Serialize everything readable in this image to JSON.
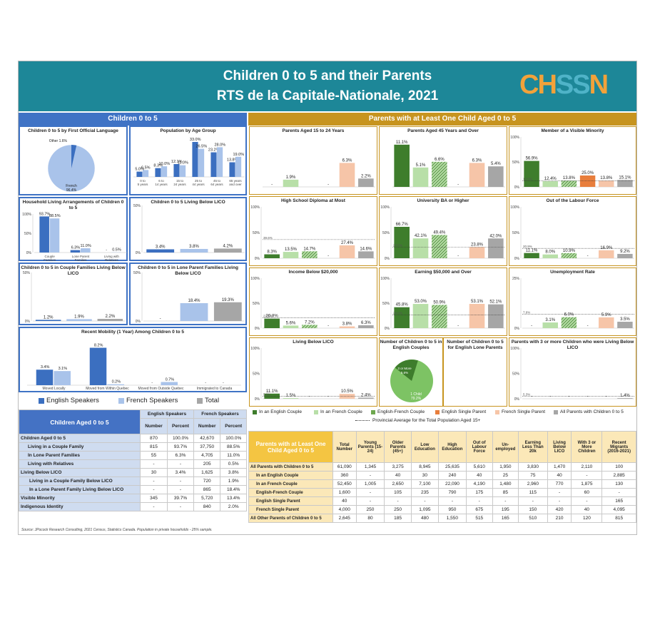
{
  "header": {
    "title": "Children 0 to 5 and their Parents",
    "subtitle": "RTS de la Capitale-Nationale, 2021",
    "logo": "CHSSN"
  },
  "left_title": "Children 0 to 5",
  "right_title": "Parents with at Least One Child Aged 0 to 5",
  "colors": {
    "teal": "#1d8798",
    "blue": "#3f73c5",
    "gold": "#c7941f",
    "eng": "#3b6fc0",
    "fr": "#a9c3ea",
    "total": "#a6a6a6",
    "ecouple": "#3e7d2c",
    "fcouple": "#b8dfa8",
    "efcouple": "#6ea84f",
    "esingle": "#e87e3c",
    "fsingle": "#f6c5a8",
    "all": "#a6a6a6"
  },
  "chart_data": [
    {
      "id": "pie1",
      "type": "pie",
      "title": "Children 0 to 5 by First Official Language",
      "labels": [
        "French",
        "English",
        "Other"
      ],
      "values": [
        96.4,
        1.9,
        1.6
      ],
      "display": [
        "French\n96.4%",
        "",
        "Other 1.6%"
      ]
    },
    {
      "id": "age",
      "type": "bar",
      "title": "Population by Age Group",
      "categories": [
        "0 to 5 years",
        "6 to 14 years",
        "15 to 24 years",
        "25 to 44 years",
        "45 to 64 years",
        "65 years and over"
      ],
      "series": [
        {
          "name": "English Speakers",
          "values": [
            5.0,
            8.3,
            12.1,
            33.0,
            23.2,
            13.8
          ]
        },
        {
          "name": "French Speakers",
          "values": [
            6.5,
            10.0,
            11.0,
            26.5,
            28.0,
            19.0
          ]
        }
      ],
      "ymax": 35
    },
    {
      "id": "hh",
      "type": "bar",
      "title": "Household Living Arrangements of Children 0 to 5",
      "categories": [
        "Couple Families",
        "Lone Parent Families",
        "Living with Relatives"
      ],
      "series": [
        {
          "name": "English Speakers",
          "values": [
            93.7,
            6.3,
            null
          ]
        },
        {
          "name": "French Speakers",
          "values": [
            88.5,
            11.0,
            0.5
          ]
        }
      ],
      "labels": [
        [
          "93.7%",
          "6.3%",
          "-"
        ],
        [
          "88.5%",
          "11.0%",
          "0.5%"
        ]
      ],
      "ymax": 100,
      "yticks": [
        "100%",
        "50%",
        "0%"
      ]
    },
    {
      "id": "licoA",
      "type": "bar",
      "title": "Children 0 to 5 Living Below LICO",
      "values": [
        3.4,
        3.8,
        4.2
      ],
      "labels": [
        "3.4%",
        "3.8%",
        "4.2%"
      ],
      "ymax": 50,
      "yticks": [
        "50%",
        "0%"
      ]
    },
    {
      "id": "licoC",
      "type": "bar",
      "title": "Children 0 to 5 in Couple Families Living Below LICO",
      "values": [
        1.2,
        1.9,
        2.2
      ],
      "labels": [
        "1.2%",
        "1.9%",
        "2.2%"
      ],
      "ymax": 50,
      "yticks": [
        "50%",
        "0%"
      ]
    },
    {
      "id": "licoL",
      "type": "bar",
      "title": "Children 0 to 5 in Lone Parent Families Living Below LICO",
      "values": [
        null,
        18.4,
        19.3
      ],
      "labels": [
        "-",
        "18.4%",
        "19.3%"
      ],
      "ymax": 50,
      "yticks": [
        "50%",
        "0%"
      ]
    },
    {
      "id": "mob",
      "type": "bar",
      "title": "Recent Mobility (1 Year) Among Children 0 to 5",
      "categories": [
        "Moved Locally",
        "Moved from Within Quebec",
        "Moved from Outside Quebec",
        "Immigrated to Canada"
      ],
      "series": [
        {
          "name": "English Speakers",
          "values": [
            3.4,
            8.2,
            null,
            null
          ]
        },
        {
          "name": "French Speakers",
          "values": [
            3.1,
            0.2,
            0.7,
            null
          ]
        }
      ],
      "labels": [
        [
          "3.4%",
          "8.2%",
          "-",
          "-"
        ],
        [
          "3.1%",
          "0.2%",
          "0.7%",
          "-"
        ]
      ],
      "ymax": 10
    },
    {
      "id": "p1",
      "type": "bar",
      "title": "Parents Aged 15 to 24 Years",
      "values": [
        null,
        1.9,
        null,
        null,
        6.3,
        2.2
      ],
      "labels": [
        "-",
        "1.9%",
        "",
        "-",
        "6.3%",
        "2.2%"
      ],
      "ymax": 12
    },
    {
      "id": "p2",
      "type": "bar",
      "title": "Parents Aged 45 Years and Over",
      "values": [
        11.1,
        5.1,
        6.6,
        null,
        6.3,
        5.4
      ],
      "labels": [
        "11.1%",
        "5.1%",
        "6.6%",
        "-",
        "6.3%",
        "5.4%"
      ],
      "ymax": 12
    },
    {
      "id": "p3",
      "type": "bar",
      "title": "Member of a Visible Minority",
      "values": [
        56.9,
        12.4,
        13.8,
        25.0,
        13.8,
        15.1
      ],
      "labels": [
        "56.9%",
        "12.4%",
        "13.8%",
        "25.0%",
        "13.8%",
        "15.1%"
      ],
      "ymax": 100,
      "yticks": [
        "100%",
        "50%",
        "0%"
      ],
      "avg": 13.0,
      "avgl": "13.0%"
    },
    {
      "id": "p4",
      "type": "bar",
      "title": "High School Diploma at Most",
      "values": [
        8.3,
        13.5,
        14.7,
        null,
        27.4,
        14.6
      ],
      "labels": [
        "8.3%",
        "13.5%",
        "14.7%",
        "-",
        "27.4%",
        "14.6%"
      ],
      "ymax": 100,
      "yticks": [
        "100%",
        "50%",
        "0%"
      ],
      "avg": 39.6,
      "avgl": "39.6%"
    },
    {
      "id": "p5",
      "type": "bar",
      "title": "University BA or Higher",
      "values": [
        66.7,
        42.1,
        49.4,
        null,
        23.8,
        42.0
      ],
      "labels": [
        "66.7%",
        "42.1%",
        "49.4%",
        "-",
        "23.8%",
        "42.0%"
      ],
      "ymax": 100,
      "yticks": [
        "100%",
        "50%",
        "0%"
      ],
      "avg": 23.5,
      "avgl": "23.5%"
    },
    {
      "id": "p6",
      "type": "bar",
      "title": "Out of the Labour Force",
      "values": [
        11.1,
        8.0,
        10.9,
        null,
        16.9,
        9.2
      ],
      "labels": [
        "11.1%",
        "8.0%",
        "10.9%",
        "-",
        "16.9%",
        "9.2%"
      ],
      "ymax": 100,
      "yticks": [
        "100%",
        "50%",
        "0%"
      ],
      "avg": 20.9,
      "avgl": "20.9%"
    },
    {
      "id": "p7",
      "type": "bar",
      "title": "Income Below $20,000",
      "values": [
        20.8,
        5.6,
        7.2,
        null,
        3.8,
        6.3
      ],
      "labels": [
        "20.8%",
        "5.6%",
        "7.2%",
        "-",
        "3.8%",
        "6.3%"
      ],
      "ymax": 100,
      "yticks": [
        "100%",
        "50%",
        "0%"
      ],
      "avg": 22.6,
      "avgl": "22.6%"
    },
    {
      "id": "p8",
      "type": "bar",
      "title": "Earning $50,000 and Over",
      "values": [
        45.8,
        53.0,
        50.9,
        null,
        53.1,
        52.1
      ],
      "labels": [
        "45.8%",
        "53.0%",
        "50.9%",
        "-",
        "53.1%",
        "52.1%"
      ],
      "ymax": 100,
      "yticks": [
        "100%",
        "50%",
        "0%"
      ],
      "avg": 29.0,
      "avgl": "29.0%"
    },
    {
      "id": "p9",
      "type": "bar",
      "title": "Unemployment Rate",
      "values": [
        null,
        3.1,
        6.0,
        null,
        5.9,
        3.5
      ],
      "labels": [
        "-",
        "3.1%",
        "6.0%",
        "-",
        "5.9%",
        "3.5%"
      ],
      "ymax": 25,
      "yticks": [
        "25%",
        "0%"
      ],
      "avg": 7.6,
      "avgl": "7.6%"
    },
    {
      "id": "p10",
      "type": "bar",
      "title": "Living Below LICO",
      "values": [
        11.1,
        1.5,
        null,
        null,
        10.5,
        2.4
      ],
      "labels": [
        "11.1%",
        "1.5%",
        "-",
        "-",
        "10.5%",
        "2.4%"
      ],
      "ymax": 100,
      "yticks": [
        "100%",
        "50%",
        "0%"
      ],
      "avg": 5.3,
      "avgl": "5.3%"
    },
    {
      "id": "pie2",
      "type": "pie",
      "title": "Number of Children 0 to 5 in English Couples",
      "labels": [
        "1 Child",
        "3 or More"
      ],
      "values": [
        79.2,
        5.6
      ],
      "display": [
        "1 Child\n79.2%",
        "3 or More\n5.6%"
      ]
    },
    {
      "id": "pie3",
      "type": "pie",
      "title": "Number of Children 0 to 5 for English Lone Parents",
      "labels": [],
      "values": []
    },
    {
      "id": "p11",
      "type": "bar",
      "title": "Parents with 3 or more Children who were Living Below LICO",
      "values": [
        null,
        null,
        null,
        null,
        null,
        1.4
      ],
      "labels": [
        "-",
        "-",
        "-",
        "-",
        "-",
        "1.4%"
      ],
      "ymax": 100,
      "yticks": [
        "100%",
        "50%",
        "0%"
      ],
      "avg": 5.3,
      "avgl": "5.3%"
    }
  ],
  "legend_left": [
    "English Speakers",
    "French Speakers",
    "Total"
  ],
  "legend_right": [
    "In an English Couple",
    "In an French Couple",
    "English-French Couple",
    "English Single Parent",
    "French Single Parent",
    "All Parents with Children 0 to 5"
  ],
  "legend_avg": "Provincial Average for the Total Population Aged 15+",
  "ltable": {
    "title": "Children Aged 0 to 5",
    "groups": [
      "English Speakers",
      "French Speakers"
    ],
    "cols": [
      "Number",
      "Percent",
      "Number",
      "Percent"
    ],
    "rows": [
      [
        "Children Aged 0 to 5",
        "870",
        "100.0%",
        "42,670",
        "100.0%"
      ],
      [
        "Living in a Couple Family",
        "815",
        "93.7%",
        "37,750",
        "88.5%"
      ],
      [
        "In Lone Parent Families",
        "55",
        "6.3%",
        "4,705",
        "11.0%"
      ],
      [
        "Living with Relatives",
        "-",
        "-",
        "205",
        "0.5%"
      ],
      [
        "Living Below LICO",
        "30",
        "3.4%",
        "1,625",
        "3.8%"
      ],
      [
        "Living in a Couple Family Below LICO",
        "-",
        "-",
        "720",
        "1.9%"
      ],
      [
        "In a Lone Parent Family Living Below LICO",
        "-",
        "-",
        "865",
        "18.4%"
      ],
      [
        "Visible Minority",
        "345",
        "39.7%",
        "5,720",
        "13.4%"
      ],
      [
        "Indigenous Identity",
        "-",
        "-",
        "840",
        "2.0%"
      ]
    ]
  },
  "rtable": {
    "title": "Parents with at Least One Child Aged 0 to 5",
    "cols": [
      "Total Number",
      "Young Parents (15-24)",
      "Older Parents (45+)",
      "Low Education",
      "High Education",
      "Out of Labour Force",
      "Un-employed",
      "Earning Less Than 20k",
      "Living Below LICO",
      "With 3 or More Children",
      "Recent Migrants (2016-2021)"
    ],
    "rows": [
      [
        "All Parents with Children 0 to 5",
        "61,090",
        "1,345",
        "3,275",
        "8,945",
        "25,635",
        "5,610",
        "1,950",
        "3,830",
        "1,470",
        "2,110",
        "100"
      ],
      [
        "In an English Couple",
        "360",
        "-",
        "40",
        "30",
        "240",
        "40",
        "25",
        "75",
        "40",
        "-",
        "2,885"
      ],
      [
        "In an French Couple",
        "52,450",
        "1,005",
        "2,650",
        "7,100",
        "22,090",
        "4,190",
        "1,480",
        "2,960",
        "770",
        "1,875",
        "130"
      ],
      [
        "English-French Couple",
        "1,600",
        "-",
        "105",
        "235",
        "790",
        "175",
        "85",
        "115",
        "-",
        "60",
        "-"
      ],
      [
        "English Single Parent",
        "40",
        "-",
        "-",
        "-",
        "-",
        "-",
        "-",
        "-",
        "-",
        "-",
        "165"
      ],
      [
        "French Single Parent",
        "4,000",
        "250",
        "250",
        "1,095",
        "950",
        "675",
        "195",
        "150",
        "420",
        "40",
        "4,095"
      ],
      [
        "All Other Parents of Children 0 to 5",
        "2,645",
        "80",
        "185",
        "480",
        "1,550",
        "515",
        "165",
        "510",
        "210",
        "120",
        "815"
      ]
    ]
  },
  "source": "Source: JPocock Research Consulting, 2021 Census, Statistics Canada. Population in private households - 25% sample."
}
